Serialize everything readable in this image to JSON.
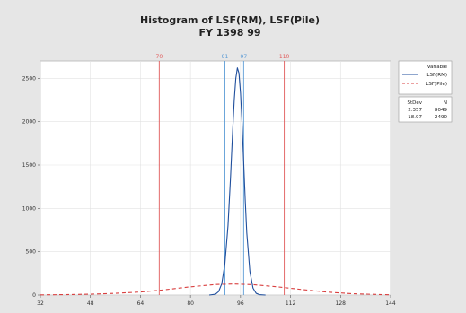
{
  "chart_data": {
    "type": "line",
    "title": "Histogram of LSF(RM), LSF(Pile)",
    "subtitle": "FY 1398 99",
    "xlabel": "",
    "ylabel": "",
    "xlim": [
      32,
      144
    ],
    "ylim": [
      0,
      2700
    ],
    "x_ticks": [
      32,
      48,
      64,
      80,
      96,
      112,
      128,
      144
    ],
    "y_ticks": [
      0,
      500,
      1000,
      1500,
      2000,
      2500
    ],
    "x_tick_labels": [
      "32",
      "48",
      "64",
      "80",
      "96",
      "112",
      "128",
      "144"
    ],
    "y_tick_labels": [
      "0",
      "500",
      "1000",
      "1500",
      "2000",
      "2500"
    ],
    "grid": true,
    "reference_lines": [
      {
        "label": "70",
        "x": 70,
        "color": "#e05a5a"
      },
      {
        "label": "91",
        "x": 91,
        "color": "#5b9bd5"
      },
      {
        "label": "97",
        "x": 97,
        "color": "#5b9bd5"
      },
      {
        "label": "110",
        "x": 110,
        "color": "#e05a5a"
      }
    ],
    "series": [
      {
        "name": "LSF(RM)",
        "style": "solid",
        "color": "#1f4e9c",
        "x": [
          86,
          88,
          89,
          90,
          91,
          92,
          92.8,
          93.5,
          94,
          94.5,
          95,
          95.5,
          96,
          96.5,
          97,
          97.5,
          98,
          99,
          100,
          101,
          102,
          104
        ],
        "y": [
          0,
          10,
          40,
          130,
          360,
          800,
          1350,
          1900,
          2250,
          2500,
          2620,
          2560,
          2330,
          1980,
          1540,
          1100,
          720,
          270,
          80,
          20,
          5,
          0
        ]
      },
      {
        "name": "LSF(Pile)",
        "style": "dashed",
        "color": "#d94040",
        "x": [
          32,
          40,
          48,
          56,
          64,
          72,
          80,
          88,
          94,
          100,
          108,
          116,
          124,
          132,
          140,
          144
        ],
        "y": [
          2,
          5,
          10,
          20,
          35,
          62,
          95,
          122,
          128,
          120,
          94,
          62,
          33,
          15,
          6,
          3
        ]
      }
    ],
    "legend": {
      "title": "Variable",
      "placement": "right",
      "stats_header": [
        "StDev",
        "N"
      ],
      "stats_rows": [
        [
          "2.357",
          "9049"
        ],
        [
          "18.97",
          "2490"
        ]
      ]
    }
  },
  "colors": {
    "background": "#e6e6e6",
    "plot_bg": "#ffffff",
    "grid": "#e2e2e2"
  }
}
